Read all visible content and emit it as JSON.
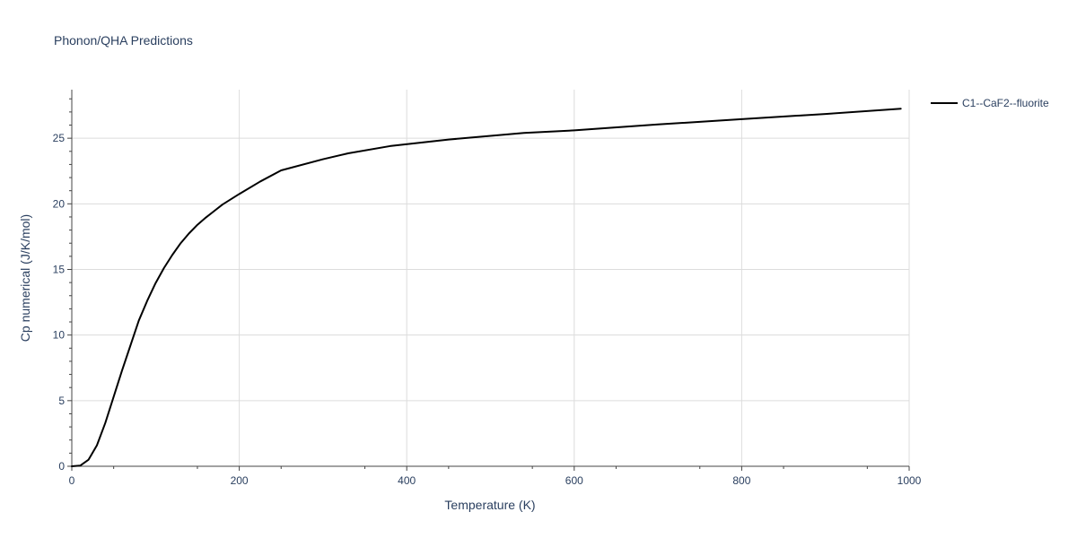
{
  "chart_data": {
    "type": "line",
    "title": "Phonon/QHA Predictions",
    "xlabel": "Temperature (K)",
    "ylabel": "Cp numerical (J/K/mol)",
    "xlim": [
      0,
      1000
    ],
    "ylim": [
      0,
      28.7
    ],
    "x_ticks": [
      0,
      200,
      400,
      600,
      800,
      1000
    ],
    "y_ticks": [
      0,
      5,
      10,
      15,
      20,
      25
    ],
    "grid": true,
    "legend_position": "top-right",
    "series": [
      {
        "name": "C1--CaF2--fluorite",
        "color": "#000000",
        "x": [
          0,
          10,
          20,
          30,
          40,
          50,
          60,
          70,
          80,
          90,
          100,
          110,
          120,
          130,
          140,
          150,
          160,
          170,
          180,
          190,
          200,
          225,
          250,
          300,
          330,
          380,
          450,
          540,
          600,
          700,
          800,
          900,
          990
        ],
        "y": [
          0,
          0.05,
          0.5,
          1.6,
          3.3,
          5.3,
          7.3,
          9.2,
          11.1,
          12.6,
          13.95,
          15.1,
          16.1,
          17.0,
          17.75,
          18.4,
          18.95,
          19.45,
          19.95,
          20.35,
          20.75,
          21.7,
          22.55,
          23.4,
          23.85,
          24.4,
          24.9,
          25.4,
          25.6,
          26.05,
          26.45,
          26.85,
          27.25
        ]
      }
    ]
  }
}
